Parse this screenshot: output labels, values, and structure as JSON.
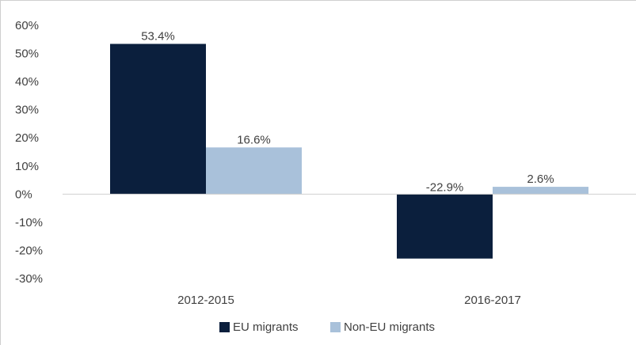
{
  "chart_data": {
    "type": "bar",
    "categories": [
      "2012-2015",
      "2016-2017"
    ],
    "series": [
      {
        "name": "EU migrants",
        "values": [
          53.4,
          -22.9
        ],
        "labels": [
          "53.4%",
          "-22.9%"
        ],
        "color": "#0b1f3d"
      },
      {
        "name": "Non-EU migrants",
        "values": [
          16.6,
          2.6
        ],
        "labels": [
          "16.6%",
          "2.6%"
        ],
        "color": "#a9c1da"
      }
    ],
    "ylim": [
      -30,
      60
    ],
    "yticks": [
      60,
      50,
      40,
      30,
      20,
      10,
      0,
      -10,
      -20,
      -30
    ],
    "ytick_labels": [
      "60%",
      "50%",
      "40%",
      "30%",
      "20%",
      "10%",
      "0%",
      "-10%",
      "-20%",
      "-30%"
    ],
    "title": "",
    "xlabel": "",
    "ylabel": "",
    "grid": false,
    "legend": "bottom"
  },
  "colors": {
    "axis": "#d0d0d0",
    "text": "#404040"
  }
}
